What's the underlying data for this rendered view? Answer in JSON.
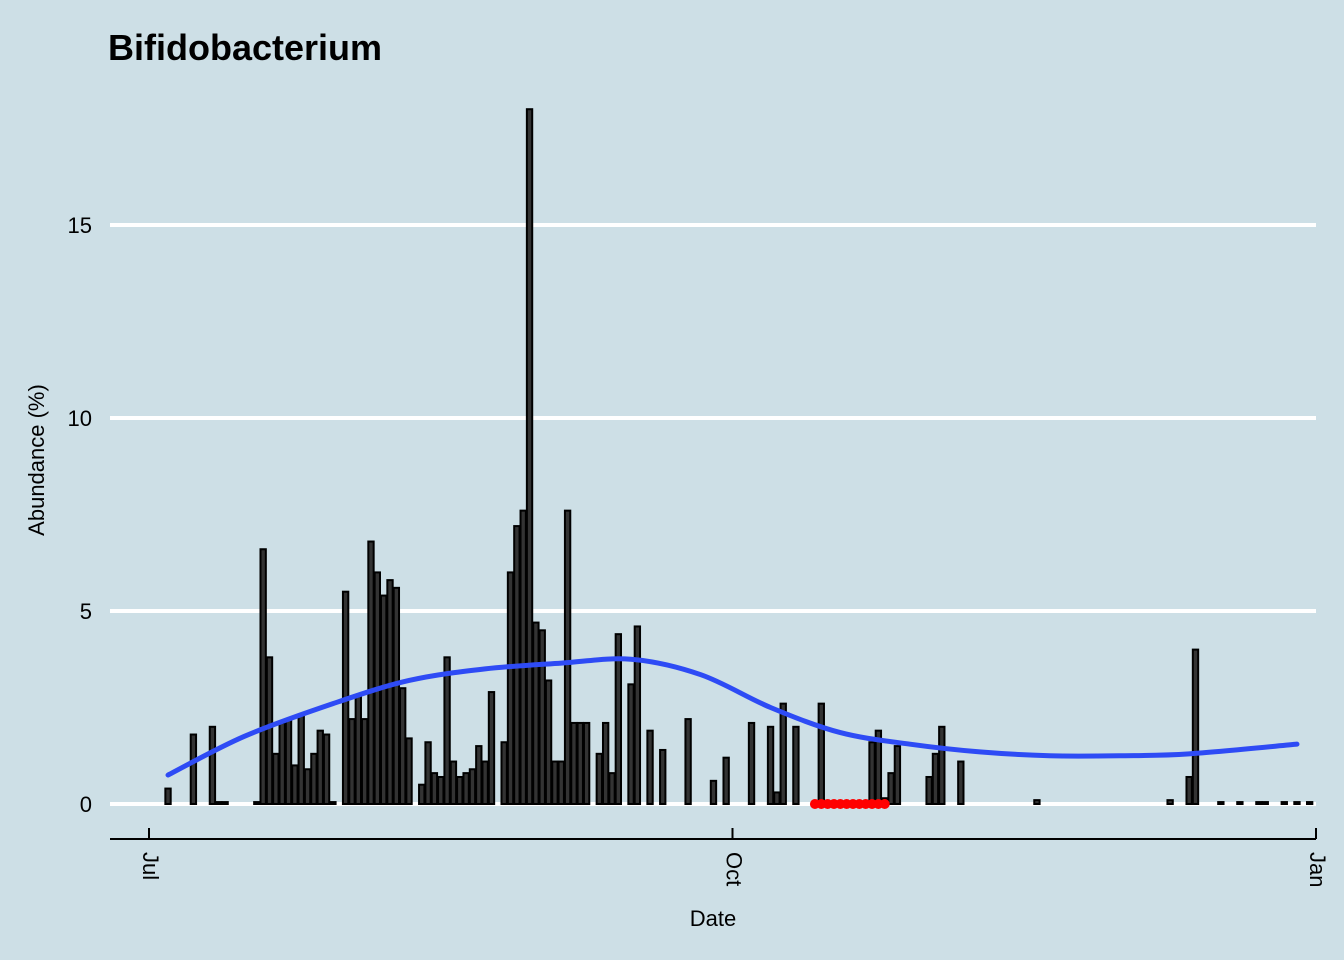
{
  "chart_data": {
    "type": "bar",
    "title": "Bifidobacterium",
    "xlabel": "Date",
    "ylabel": "Abundance (%)",
    "ylim": [
      0,
      18
    ],
    "yticks": [
      0,
      5,
      10,
      15
    ],
    "y_tick_labels": [
      "0",
      "5",
      "10",
      "15"
    ],
    "x_range": [
      "2021-07-01",
      "2022-01-01"
    ],
    "x_ticks": [
      {
        "date": "2021-07-01",
        "label": "Jul"
      },
      {
        "date": "2021-10-01",
        "label": "Oct"
      },
      {
        "date": "2022-01-01",
        "label": "Jan"
      }
    ],
    "grid": "horizontal",
    "colors": {
      "background": "#cddfe6",
      "bar_fill": "#333333",
      "bar_outline": "#000000",
      "smooth_line": "#2e4bf5",
      "zero_points": "#ff0000",
      "grid": "#ffffff"
    },
    "series": [
      {
        "type": "bar",
        "x": [
          "2021-07-04",
          "2021-07-08",
          "2021-07-11",
          "2021-07-12",
          "2021-07-13",
          "2021-07-18",
          "2021-07-19",
          "2021-07-20",
          "2021-07-21",
          "2021-07-22",
          "2021-07-23",
          "2021-07-24",
          "2021-07-25",
          "2021-07-26",
          "2021-07-27",
          "2021-07-28",
          "2021-07-29",
          "2021-07-30",
          "2021-08-01",
          "2021-08-02",
          "2021-08-03",
          "2021-08-04",
          "2021-08-05",
          "2021-08-06",
          "2021-08-07",
          "2021-08-08",
          "2021-08-09",
          "2021-08-10",
          "2021-08-11",
          "2021-08-13",
          "2021-08-14",
          "2021-08-15",
          "2021-08-16",
          "2021-08-17",
          "2021-08-18",
          "2021-08-19",
          "2021-08-20",
          "2021-08-21",
          "2021-08-22",
          "2021-08-23",
          "2021-08-24",
          "2021-08-26",
          "2021-08-27",
          "2021-08-28",
          "2021-08-29",
          "2021-08-30",
          "2021-08-31",
          "2021-09-01",
          "2021-09-02",
          "2021-09-03",
          "2021-09-04",
          "2021-09-05",
          "2021-09-06",
          "2021-09-07",
          "2021-09-08",
          "2021-09-10",
          "2021-09-11",
          "2021-09-12",
          "2021-09-13",
          "2021-09-15",
          "2021-09-16",
          "2021-09-18",
          "2021-09-20",
          "2021-09-24",
          "2021-09-28",
          "2021-09-30",
          "2021-10-04",
          "2021-10-07",
          "2021-10-08",
          "2021-10-09",
          "2021-10-11",
          "2021-10-15",
          "2021-10-23",
          "2021-10-24",
          "2021-10-25",
          "2021-10-26",
          "2021-10-27",
          "2021-11-01",
          "2021-11-02",
          "2021-11-03",
          "2021-11-06",
          "2021-11-18",
          "2021-12-09",
          "2021-12-12",
          "2021-12-13",
          "2021-12-17",
          "2021-12-20",
          "2021-12-23",
          "2021-12-24",
          "2021-12-27",
          "2021-12-29",
          "2021-12-31"
        ],
        "values": [
          0.4,
          1.8,
          2.0,
          0.05,
          0.05,
          0.05,
          6.6,
          3.8,
          1.3,
          2.1,
          2.2,
          1.0,
          2.3,
          0.9,
          1.3,
          1.9,
          1.8,
          0.05,
          5.5,
          2.2,
          2.8,
          2.2,
          6.8,
          6.0,
          5.4,
          5.8,
          5.6,
          3.0,
          1.7,
          0.5,
          1.6,
          0.8,
          0.7,
          3.8,
          1.1,
          0.7,
          0.8,
          0.9,
          1.5,
          1.1,
          2.9,
          1.6,
          6.0,
          7.2,
          7.6,
          18.0,
          4.7,
          4.5,
          3.2,
          1.1,
          1.1,
          7.6,
          2.1,
          2.1,
          2.1,
          1.3,
          2.1,
          0.8,
          4.4,
          3.1,
          4.6,
          1.9,
          1.4,
          2.2,
          0.6,
          1.2,
          2.1,
          2.0,
          0.3,
          2.6,
          2.0,
          2.6,
          1.6,
          1.9,
          0.15,
          0.8,
          1.5,
          0.7,
          1.3,
          2.0,
          1.1,
          0.1,
          0.1,
          0.7,
          4.0,
          0.05,
          0.05,
          0.05,
          0.05,
          0.05,
          0.05,
          0.05
        ]
      },
      {
        "type": "smooth-line",
        "x": [
          "2021-07-04",
          "2021-07-16",
          "2021-07-30",
          "2021-08-11",
          "2021-08-23",
          "2021-09-04",
          "2021-09-15",
          "2021-09-26",
          "2021-10-07",
          "2021-10-18",
          "2021-10-29",
          "2021-11-09",
          "2021-11-20",
          "2021-12-01",
          "2021-12-12",
          "2021-12-29"
        ],
        "values": [
          0.75,
          1.75,
          2.6,
          3.2,
          3.5,
          3.65,
          3.75,
          3.35,
          2.5,
          1.85,
          1.55,
          1.35,
          1.25,
          1.25,
          1.3,
          1.55
        ]
      },
      {
        "type": "scatter",
        "x": [
          "2021-10-14",
          "2021-10-15",
          "2021-10-16",
          "2021-10-17",
          "2021-10-18",
          "2021-10-19",
          "2021-10-20",
          "2021-10-21",
          "2021-10-22",
          "2021-10-23",
          "2021-10-24",
          "2021-10-25"
        ],
        "values": [
          0,
          0,
          0,
          0,
          0,
          0,
          0,
          0,
          0,
          0,
          0,
          0
        ]
      }
    ]
  }
}
